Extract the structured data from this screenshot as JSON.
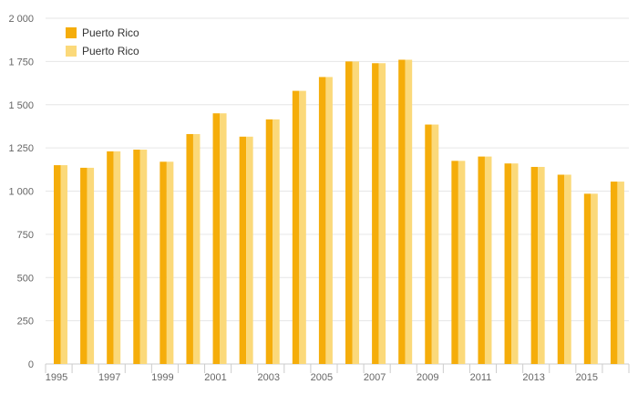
{
  "chart_data": {
    "type": "bar",
    "categories": [
      "1995",
      "1996",
      "1997",
      "1998",
      "1999",
      "2000",
      "2001",
      "2002",
      "2003",
      "2004",
      "2005",
      "2006",
      "2007",
      "2008",
      "2009",
      "2010",
      "2011",
      "2012",
      "2013",
      "2014",
      "2015",
      "2016"
    ],
    "x_tick_labels": [
      "1995",
      "1997",
      "1999",
      "2001",
      "2003",
      "2005",
      "2007",
      "2009",
      "2011",
      "2013",
      "2015"
    ],
    "y_ticks": [
      0,
      250,
      500,
      750,
      1000,
      1250,
      1500,
      1750,
      2000
    ],
    "y_tick_labels": [
      "0",
      "250",
      "500",
      "750",
      "1 000",
      "1 250",
      "1 500",
      "1 750",
      "2 000"
    ],
    "ylim": [
      0,
      2000
    ],
    "grid": true,
    "legend_position": "top-left",
    "series": [
      {
        "name": "Puerto Rico",
        "color": "#f5ad0a",
        "values": [
          1150,
          1135,
          1230,
          1240,
          1170,
          1330,
          1450,
          1315,
          1415,
          1580,
          1660,
          1750,
          1740,
          1760,
          1385,
          1175,
          1200,
          1160,
          1140,
          1095,
          985,
          1055
        ]
      },
      {
        "name": "Puerto Rico",
        "color": "#fbd97a",
        "values": [
          1150,
          1135,
          1230,
          1240,
          1170,
          1330,
          1450,
          1315,
          1415,
          1580,
          1660,
          1750,
          1740,
          1760,
          1385,
          1175,
          1200,
          1160,
          1140,
          1095,
          985,
          1055
        ]
      }
    ]
  }
}
